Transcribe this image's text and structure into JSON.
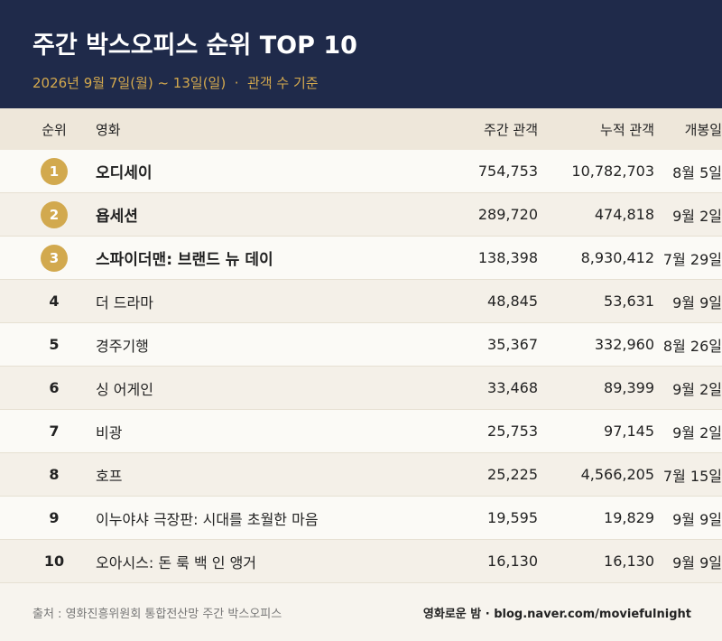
{
  "header": {
    "title": "주간 박스오피스 순위 TOP 10",
    "period": "2026년 9월 7일(월) ~ 13일(일)",
    "basis": "관객 수 기준"
  },
  "table": {
    "columns": [
      "순위",
      "영화",
      "주간 관객",
      "누적 관객",
      "개봉일"
    ],
    "rows": [
      [
        "1",
        "오디세이",
        "754,753",
        "10,782,703",
        "8월 5일"
      ],
      [
        "2",
        "욥세션",
        "289,720",
        "474,818",
        "9월 2일"
      ],
      [
        "3",
        "스파이더맨: 브랜드 뉴 데이",
        "138,398",
        "8,930,412",
        "7월 29일"
      ],
      [
        "4",
        "더 드라마",
        "48,845",
        "53,631",
        "9월 9일"
      ],
      [
        "5",
        "경주기행",
        "35,367",
        "332,960",
        "8월 26일"
      ],
      [
        "6",
        "싱 어게인",
        "33,468",
        "89,399",
        "9월 2일"
      ],
      [
        "7",
        "비광",
        "25,753",
        "97,145",
        "9월 2일"
      ],
      [
        "8",
        "호프",
        "25,225",
        "4,566,205",
        "7월 15일"
      ],
      [
        "9",
        "이누야샤 극장판: 시대를 초월한 마음",
        "19,595",
        "19,829",
        "9월 9일"
      ],
      [
        "10",
        "오아시스: 돈 룩 백 인 앵거",
        "16,130",
        "16,130",
        "9월 9일"
      ]
    ]
  },
  "footer": {
    "source": "출처 : 영화진흥위원회 통합전산망 주간 박스오피스",
    "credit": "영화로운 밤 · blog.naver.com/moviefulnight"
  }
}
